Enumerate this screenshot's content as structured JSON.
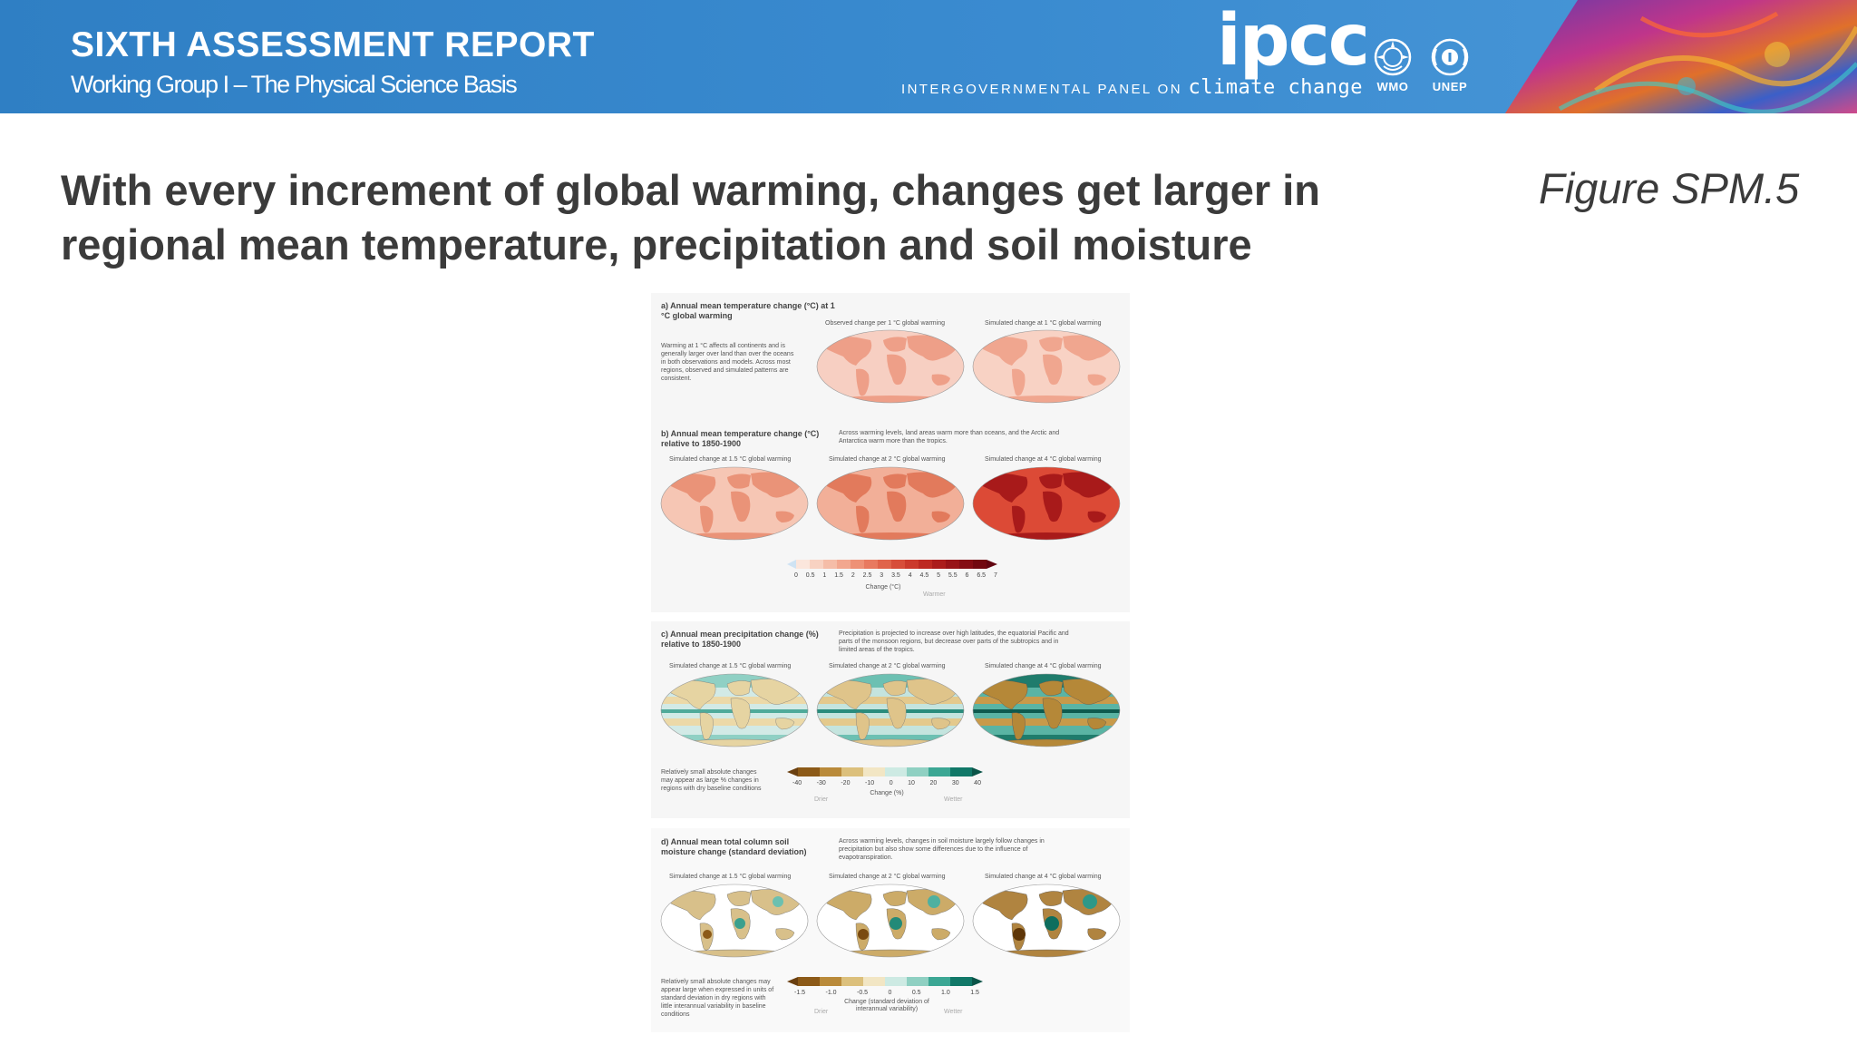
{
  "header": {
    "report_title": "SIXTH ASSESSMENT REPORT",
    "report_subtitle": "Working Group I – The Physical Science Basis",
    "ipcc_logo": "ipcc",
    "ipcc_tagline_prefix": "INTERGOVERNMENTAL PANEL ON",
    "ipcc_tagline_suffix": "climate change",
    "wmo_label": "WMO",
    "unep_label": "UNEP",
    "colors": {
      "banner": "#3a8bd0",
      "text": "#ffffff"
    }
  },
  "slide": {
    "title": "With every increment of global warming, changes get larger in regional mean temperature, precipitation and soil moisture",
    "figure_id": "Figure SPM.5"
  },
  "figure": {
    "panel_a": {
      "title": "a) Annual mean temperature change (°C) at 1 °C global warming",
      "note": "Warming at 1 °C affects all continents and is generally larger over land than over the oceans in both observations and models. Across most regions, observed and simulated patterns are consistent.",
      "map_labels": [
        "Observed change per 1 °C global warming",
        "Simulated change at 1 °C global warming"
      ]
    },
    "panel_b": {
      "title": "b) Annual mean temperature change (°C) relative to 1850-1900",
      "note": "Across warming levels, land areas warm more than oceans, and the Arctic and Antarctica warm more than the tropics.",
      "map_labels": [
        "Simulated change at 1.5 °C global warming",
        "Simulated change at 2 °C global warming",
        "Simulated change at 4 °C global warming"
      ],
      "colorbar_ticks": [
        "0",
        "0.5",
        "1",
        "1.5",
        "2",
        "2.5",
        "3",
        "3.5",
        "4",
        "4.5",
        "5",
        "5.5",
        "6",
        "6.5",
        "7"
      ],
      "colorbar_label": "Change (°C)",
      "colorbar_end": "Warmer"
    },
    "panel_c": {
      "title": "c) Annual mean precipitation change (%) relative to 1850-1900",
      "note": "Precipitation is projected to increase over high latitudes, the equatorial Pacific and parts of the monsoon regions, but decrease over parts of the subtropics and in limited areas of the tropics.",
      "map_labels": [
        "Simulated change at 1.5 °C global warming",
        "Simulated change at 2 °C global warming",
        "Simulated change at 4 °C global warming"
      ],
      "side_note": "Relatively small absolute changes may appear as large % changes in regions with dry baseline conditions",
      "colorbar_ticks": [
        "-40",
        "-30",
        "-20",
        "-10",
        "0",
        "10",
        "20",
        "30",
        "40"
      ],
      "colorbar_label": "Change (%)",
      "colorbar_left": "Drier",
      "colorbar_right": "Wetter"
    },
    "panel_d": {
      "title": "d) Annual mean total column soil moisture change (standard deviation)",
      "note": "Across warming levels, changes in soil moisture largely follow changes in precipitation but also show some differences due to the influence of evapotranspiration.",
      "map_labels": [
        "Simulated change at 1.5 °C global warming",
        "Simulated change at 2 °C global warming",
        "Simulated change at 4 °C global warming"
      ],
      "side_note": "Relatively small absolute changes may appear large when expressed in units of standard deviation in dry regions with little interannual variability in baseline conditions",
      "colorbar_ticks": [
        "-1.5",
        "-1.0",
        "-0.5",
        "0",
        "0.5",
        "1.0",
        "1.5"
      ],
      "colorbar_label": "Change (standard deviation of interannual variability)",
      "colorbar_left": "Drier",
      "colorbar_right": "Wetter"
    }
  }
}
